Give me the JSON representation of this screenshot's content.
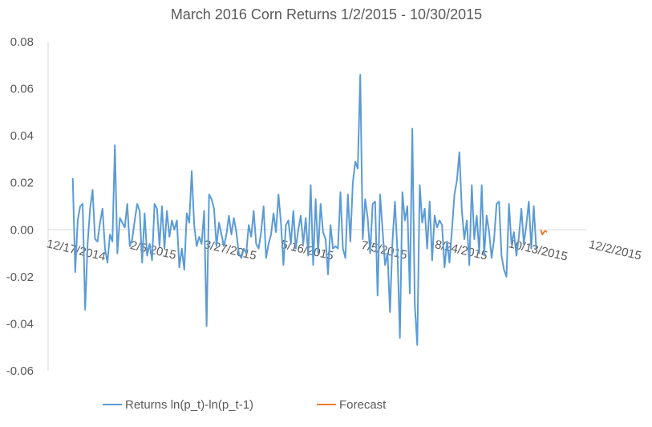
{
  "chart_data": {
    "type": "line",
    "title": "March 2016 Corn Returns 1/2/2015 - 10/30/2015",
    "xlabel": "",
    "ylabel": "",
    "ylim": [
      -0.06,
      0.08
    ],
    "yticks": [
      "0.08",
      "0.06",
      "0.04",
      "0.02",
      "0.00",
      "-0.02",
      "-0.04",
      "-0.06"
    ],
    "xlim": [
      "2014-12-17",
      "2015-12-02"
    ],
    "xticks": [
      "12/17/2014",
      "2/5/2015",
      "3/27/2015",
      "5/16/2015",
      "7/5/2015",
      "8/24/2015",
      "10/13/2015",
      "12/2/2015"
    ],
    "grid": false,
    "legend_position": "bottom",
    "series": [
      {
        "name": "Returns ln(p_t)-ln(p_t-1)",
        "color": "#5b9bd5",
        "x_start": "2015-01-02",
        "x_end": "2015-10-30",
        "values": [
          0.022,
          -0.018,
          0.004,
          0.01,
          0.011,
          -0.034,
          -0.006,
          0.009,
          0.017,
          -0.004,
          -0.005,
          0.003,
          0.009,
          -0.008,
          -0.014,
          -0.002,
          -0.005,
          0.036,
          -0.01,
          0.005,
          0.003,
          0.001,
          0.011,
          -0.007,
          -0.004,
          0.004,
          0.011,
          0.008,
          -0.014,
          0.007,
          -0.011,
          -0.006,
          -0.013,
          0.011,
          0.009,
          -0.007,
          0.01,
          -0.008,
          0.008,
          -0.003,
          0.004,
          0.0,
          0.004,
          -0.016,
          -0.008,
          -0.017,
          0.007,
          0.003,
          0.025,
          0.002,
          -0.007,
          -0.003,
          -0.006,
          0.008,
          -0.041,
          0.015,
          0.013,
          0.009,
          -0.007,
          0.003,
          -0.002,
          -0.007,
          -0.002,
          0.006,
          -0.002,
          0.005,
          -0.001,
          -0.01,
          -0.012,
          -0.008,
          -0.01,
          0.002,
          -0.003,
          0.008,
          -0.006,
          -0.008,
          -0.001,
          0.01,
          -0.012,
          -0.006,
          -0.002,
          0.007,
          -0.001,
          0.015,
          0.003,
          -0.015,
          0.002,
          0.004,
          -0.006,
          0.008,
          -0.008,
          0.0,
          0.006,
          -0.006,
          0.005,
          -0.011,
          0.019,
          -0.015,
          0.013,
          -0.01,
          0.011,
          -0.001,
          -0.004,
          -0.019,
          0.002,
          -0.008,
          -0.007,
          -0.008,
          0.016,
          -0.008,
          -0.012,
          0.015,
          -0.005,
          0.02,
          0.029,
          0.026,
          0.066,
          -0.004,
          0.013,
          0.005,
          -0.01,
          0.011,
          0.012,
          -0.028,
          0.015,
          0.0,
          -0.015,
          -0.01,
          -0.035,
          -0.005,
          0.012,
          -0.009,
          -0.046,
          0.016,
          0.004,
          0.01,
          -0.027,
          0.043,
          -0.032,
          -0.049,
          0.019,
          0.003,
          0.009,
          -0.008,
          0.012,
          -0.013,
          0.006,
          0.001,
          0.004,
          0.002,
          -0.016,
          -0.005,
          -0.014,
          0.0,
          0.015,
          0.021,
          0.033,
          0.008,
          -0.004,
          0.004,
          -0.015,
          0.019,
          -0.004,
          0.006,
          -0.01,
          0.019,
          -0.011,
          0.006,
          -0.001,
          -0.012,
          -0.004,
          0.011,
          0.012,
          -0.011,
          -0.017,
          -0.02,
          0.011,
          -0.006,
          -0.001,
          -0.011,
          -0.003,
          0.009,
          -0.006,
          0.002,
          0.012,
          -0.008,
          0.01,
          -0.008
        ]
      },
      {
        "name": "Forecast",
        "color": "#ed7d31",
        "x_start": "2015-11-02",
        "x_end": "2015-11-06",
        "values": [
          0.0,
          -0.002,
          -0.001,
          -0.0005,
          -0.001
        ]
      }
    ]
  }
}
